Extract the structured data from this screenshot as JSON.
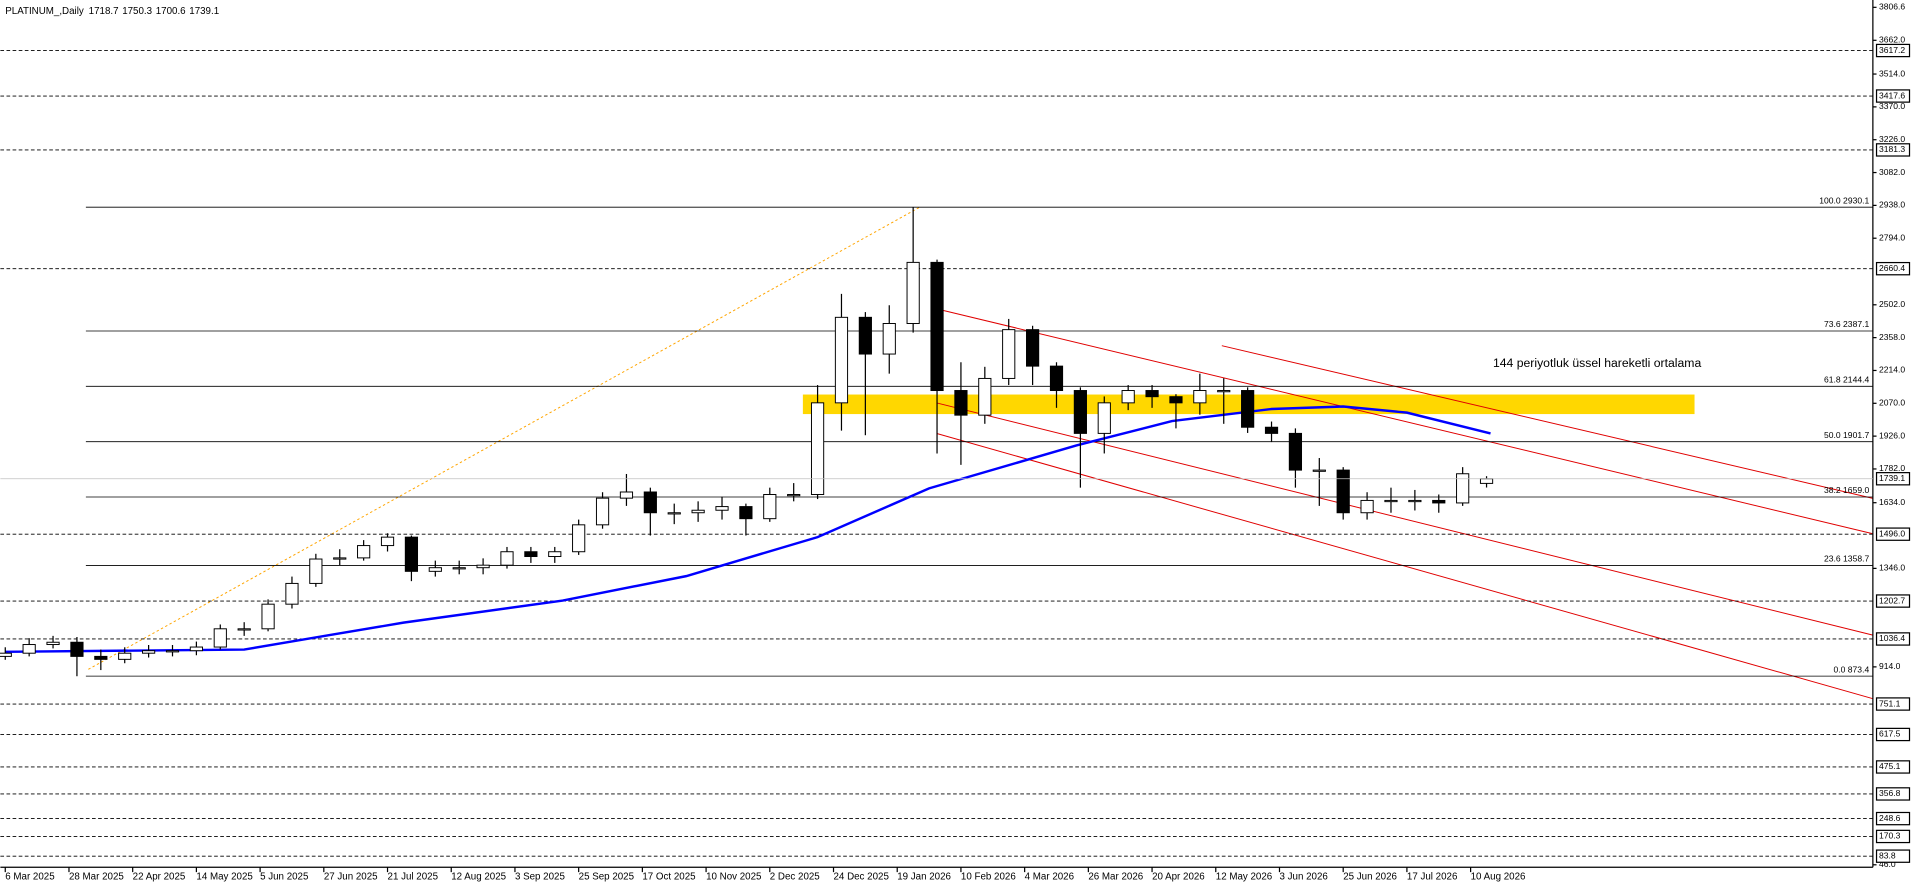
{
  "chart_data": {
    "type": "candlestick",
    "title": "PLATINUM_,Daily",
    "header_values": [
      1718.7,
      1750.3,
      1700.6,
      1739.1
    ],
    "annotation": "144 periyotluk üssel hareketli ortalama",
    "annotation_color": "#1a1aff",
    "up_color": "#ffffff",
    "down_color": "#000000",
    "x": [
      0,
      6,
      12,
      18,
      24,
      30,
      36,
      42,
      48,
      54,
      60,
      66,
      72,
      78,
      84,
      90,
      96,
      102,
      108,
      114,
      120,
      126,
      132,
      138,
      144,
      150,
      156,
      162,
      168,
      174,
      180,
      186,
      192,
      198,
      204,
      210,
      216,
      222,
      228,
      234,
      240,
      246,
      252,
      258,
      264,
      270,
      276,
      282,
      288,
      294,
      300,
      306,
      312,
      318,
      324,
      330,
      336,
      342,
      348,
      354,
      360,
      366,
      372
    ],
    "open": [
      960,
      974,
      1012,
      1022,
      960,
      947,
      974,
      985,
      985,
      1001,
      1081,
      1081,
      1189,
      1280,
      1387,
      1392,
      1446,
      1483,
      1333,
      1349,
      1349,
      1360,
      1419,
      1398,
      1419,
      1537,
      1654,
      1681,
      1590,
      1590,
      1601,
      1617,
      1564,
      1670,
      1670,
      2072,
      2447,
      2286,
      2420,
      2688,
      2126,
      2018,
      2179,
      2393,
      2233,
      2126,
      1938,
      2072,
      2126,
      2099,
      2072,
      2126,
      2126,
      1965,
      1938,
      1777,
      1777,
      1590,
      1644,
      1644,
      1644,
      1633,
      1718.7
    ],
    "high": [
      1000,
      1040,
      1050,
      1045,
      990,
      1000,
      1010,
      1010,
      1025,
      1100,
      1110,
      1210,
      1310,
      1410,
      1430,
      1470,
      1500,
      1490,
      1380,
      1380,
      1390,
      1440,
      1440,
      1440,
      1560,
      1680,
      1760,
      1700,
      1630,
      1640,
      1660,
      1630,
      1700,
      1720,
      2150,
      2550,
      2470,
      2500,
      2930,
      2700,
      2250,
      2230,
      2440,
      2410,
      2250,
      2140,
      2100,
      2150,
      2150,
      2110,
      2200,
      2180,
      2140,
      1990,
      1960,
      1830,
      1790,
      1680,
      1700,
      1690,
      1670,
      1790,
      1750.3
    ],
    "low": [
      945,
      960,
      995,
      873,
      900,
      930,
      955,
      960,
      965,
      990,
      1050,
      1070,
      1170,
      1265,
      1360,
      1380,
      1420,
      1290,
      1310,
      1320,
      1320,
      1345,
      1370,
      1370,
      1405,
      1520,
      1620,
      1490,
      1540,
      1550,
      1560,
      1490,
      1550,
      1640,
      1650,
      1950,
      1930,
      2200,
      2380,
      1850,
      1800,
      1980,
      2150,
      2150,
      2050,
      1700,
      1850,
      2040,
      2050,
      1960,
      2020,
      1980,
      1940,
      1900,
      1700,
      1620,
      1560,
      1560,
      1590,
      1600,
      1590,
      1620,
      1700.6
    ],
    "close": [
      974,
      1012,
      1022,
      960,
      947,
      974,
      985,
      985,
      1001,
      1081,
      1081,
      1189,
      1280,
      1387,
      1392,
      1446,
      1483,
      1333,
      1349,
      1349,
      1360,
      1419,
      1398,
      1419,
      1537,
      1654,
      1681,
      1590,
      1590,
      1601,
      1617,
      1564,
      1670,
      1670,
      2072,
      2447,
      2286,
      2420,
      2688,
      2126,
      2018,
      2179,
      2393,
      2233,
      2126,
      1938,
      2072,
      2126,
      2099,
      2072,
      2126,
      2126,
      1965,
      1938,
      1777,
      1777,
      1590,
      1644,
      1644,
      1644,
      1633,
      1761,
      1739.1
    ],
    "ema": {
      "color": "#0000ff",
      "x": [
        0,
        60,
        82,
        100,
        140,
        171,
        204,
        232,
        269,
        293,
        318,
        336,
        352,
        373
      ],
      "values": [
        980,
        990,
        1055,
        1108,
        1205,
        1312,
        1483,
        1697,
        1885,
        1992,
        2045,
        2056,
        2029,
        1938
      ]
    },
    "current_price": 1739.1,
    "xlim": [
      0,
      469
    ],
    "xticks": [
      {
        "value": 0,
        "label": "6 Mar 2025"
      },
      {
        "value": 16,
        "label": "28 Mar 2025"
      },
      {
        "value": 32,
        "label": "22 Apr 2025"
      },
      {
        "value": 48,
        "label": "14 May 2025"
      },
      {
        "value": 64,
        "label": "5 Jun 2025"
      },
      {
        "value": 80,
        "label": "27 Jun 2025"
      },
      {
        "value": 96,
        "label": "21 Jul 2025"
      },
      {
        "value": 112,
        "label": "12 Aug 2025"
      },
      {
        "value": 128,
        "label": "3 Sep 2025"
      },
      {
        "value": 144,
        "label": "25 Sep 2025"
      },
      {
        "value": 160,
        "label": "17 Oct 2025"
      },
      {
        "value": 176,
        "label": "10 Nov 2025"
      },
      {
        "value": 192,
        "label": "2 Dec 2025"
      },
      {
        "value": 208,
        "label": "24 Dec 2025"
      },
      {
        "value": 224,
        "label": "19 Jan 2026"
      },
      {
        "value": 240,
        "label": "10 Feb 2026"
      },
      {
        "value": 256,
        "label": "4 Mar 2026"
      },
      {
        "value": 272,
        "label": "26 Mar 2026"
      },
      {
        "value": 288,
        "label": "20 Apr 2026"
      },
      {
        "value": 304,
        "label": "12 May 2026"
      },
      {
        "value": 320,
        "label": "3 Jun 2026"
      },
      {
        "value": 336,
        "label": "25 Jun 2026"
      },
      {
        "value": 352,
        "label": "17 Jul 2026"
      },
      {
        "value": 368,
        "label": "10 Aug 2026"
      }
    ],
    "ylim": [
      46.0,
      3806.6
    ],
    "yticks": [
      3806.6,
      {
        "value": 3662,
        "label": "3662.0"
      },
      {
        "value": 3514,
        "label": "3514.0"
      },
      {
        "value": 3370,
        "label": "3370.0"
      },
      {
        "value": 3226,
        "label": "3226.0"
      },
      {
        "value": 3082,
        "label": "3082.0"
      },
      {
        "value": 2938,
        "label": "2938.0"
      },
      {
        "value": 2794,
        "label": "2794.0"
      },
      {
        "value": 2502,
        "label": "2502.0"
      },
      {
        "value": 2358,
        "label": "2358.0"
      },
      {
        "value": 2214,
        "label": "2214.0"
      },
      {
        "value": 2070,
        "label": "2070.0"
      },
      {
        "value": 1926,
        "label": "1926.0"
      },
      {
        "value": 1782,
        "label": "1782.0"
      },
      {
        "value": 1634,
        "label": "1634.0"
      },
      {
        "value": 1346,
        "label": "1346.0"
      },
      {
        "value": 914,
        "label": "914.0"
      },
      {
        "value": 46,
        "label": "46.0"
      }
    ],
    "levels": [
      3617.2,
      3417.6,
      3181.3,
      2660.4,
      {
        "value": 1496,
        "label": "1496.0"
      },
      1202.7,
      1036.4,
      751.1,
      617.5,
      475.1,
      356.8,
      248.6,
      170.3,
      83.8
    ],
    "fib_levels": [
      {
        "value": 2930.1,
        "label": "100.0 2930.1"
      },
      {
        "value": 2387.1,
        "label": "73.6 2387.1"
      },
      {
        "value": 2144.4,
        "label": "61.8 2144.4"
      },
      {
        "value": 1901.7,
        "label": "50.0 1901.7"
      },
      {
        "value": 1659.0,
        "label": "38.2 1659.0"
      },
      {
        "value": 1358.7,
        "label": "23.6 1358.7"
      },
      {
        "value": 873.4,
        "label": "0.0 873.4"
      }
    ]
  }
}
